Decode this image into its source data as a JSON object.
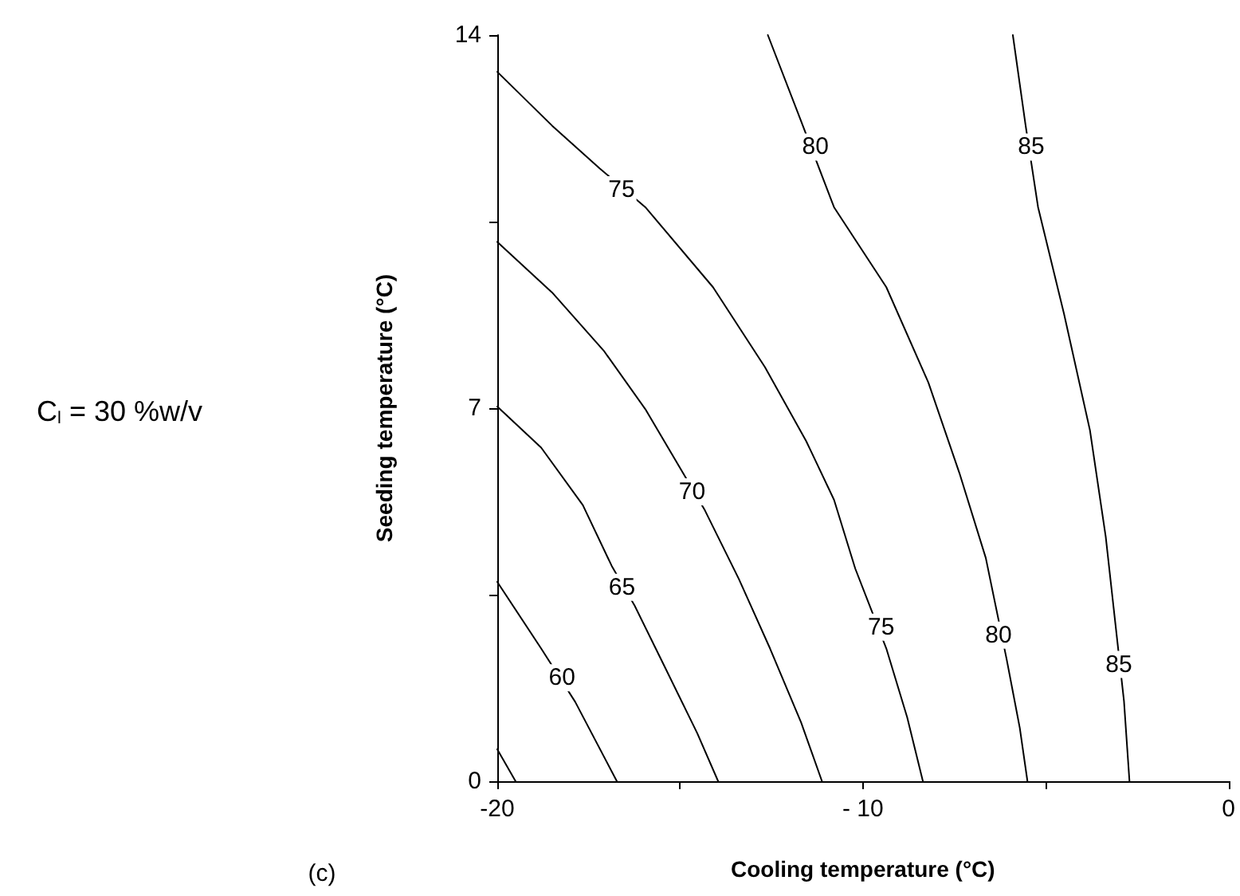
{
  "chart_data": {
    "type": "line",
    "xlabel": "Cooling temperature (°C)",
    "ylabel": "Seeding temperature (°C)",
    "xlim": [
      -20,
      0
    ],
    "xticks": [
      -20,
      {
        "value": -15,
        "label": null
      },
      {
        "value": -10,
        "label": "- 10"
      },
      {
        "value": -5,
        "label": null
      },
      0
    ],
    "ylim": [
      0,
      14
    ],
    "yticks": [
      0,
      {
        "value": 3.5,
        "label": null
      },
      7,
      {
        "value": 10.5,
        "label": null
      },
      14
    ],
    "grid": false,
    "marker": "none",
    "line_style": "solid",
    "series": [
      {
        "color": "#000000",
        "x": [
          -20,
          -19.5
        ],
        "values": [
          0.6,
          0
        ]
      },
      {
        "color": "#000000",
        "x": [
          -20,
          -18.8,
          -17.87,
          -16.73
        ],
        "values": [
          3.74,
          2.49,
          1.49,
          0
        ]
      },
      {
        "color": "#000000",
        "x": [
          -20,
          -18.8,
          -17.66,
          -16.87,
          -16.24,
          -15.38,
          -14.53,
          -13.96
        ],
        "values": [
          7.03,
          6.26,
          5.18,
          4.04,
          3.29,
          2.09,
          0.9,
          0
        ]
      },
      {
        "color": "#000000",
        "x": [
          -20,
          -18.5,
          -17.09,
          -15.95,
          -14.96,
          -14.32,
          -13.39,
          -12.54,
          -11.69,
          -11.12
        ],
        "values": [
          10.12,
          9.17,
          8.08,
          6.98,
          5.83,
          5.08,
          3.79,
          2.49,
          1.1,
          0
        ]
      },
      {
        "color": "#000000",
        "x": [
          -20,
          -18.5,
          -17.2,
          -15.95,
          -14.1,
          -12.68,
          -11.55,
          -10.79,
          -10.21,
          -9.36,
          -8.79,
          -8.36
        ],
        "values": [
          13.31,
          12.3,
          11.5,
          10.77,
          9.27,
          7.77,
          6.38,
          5.28,
          3.99,
          2.49,
          1.2,
          0
        ]
      },
      {
        "color": "#000000",
        "x": [
          -12.6,
          -11.7,
          -10.79,
          -9.36,
          -8.21,
          -7.36,
          -6.64,
          -6.07,
          -5.71,
          -5.5
        ],
        "values": [
          14,
          12.4,
          10.77,
          9.27,
          7.48,
          5.78,
          4.19,
          2.29,
          1.0,
          0
        ]
      },
      {
        "color": "#000000",
        "x": [
          -5.9,
          -5.55,
          -5.21,
          -4.5,
          -3.79,
          -3.36,
          -2.86,
          -2.71
        ],
        "values": [
          14,
          12.3,
          10.77,
          8.77,
          6.58,
          4.59,
          1.5,
          0
        ]
      }
    ],
    "annotations": [
      {
        "text": "60",
        "x": -18.23,
        "y": 1.94
      },
      {
        "text": "65",
        "x": -16.59,
        "y": 3.64
      },
      {
        "text": "70",
        "x": -14.67,
        "y": 5.43
      },
      {
        "text": "75",
        "x": -16.6,
        "y": 11.1
      },
      {
        "text": "75",
        "x": -9.5,
        "y": 2.89
      },
      {
        "text": "80",
        "x": -11.3,
        "y": 11.9
      },
      {
        "text": "80",
        "x": -6.29,
        "y": 2.74
      },
      {
        "text": "85",
        "x": -5.4,
        "y": 11.9
      },
      {
        "text": "85",
        "x": -3.0,
        "y": 2.19
      },
      "C$_{l}$ = 30 %w/v",
      "(c)"
    ]
  }
}
